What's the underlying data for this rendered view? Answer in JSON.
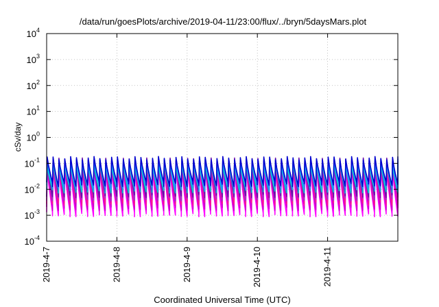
{
  "chart_data": {
    "type": "line",
    "title": "/data/run/goesPlots/archive/2019-04-11/23:00/flux/../bryn/5daysMars.plot",
    "xlabel": "Coordinated Universal Time (UTC)",
    "ylabel": "cSv/day",
    "yscale": "log",
    "ylim": [
      0.0001,
      10000
    ],
    "xlim": [
      "2019-04-07",
      "2019-04-12"
    ],
    "grid": true,
    "y_ticks": [
      {
        "value": 0.0001,
        "base": "10",
        "exp": "-4"
      },
      {
        "value": 0.001,
        "base": "10",
        "exp": "-3"
      },
      {
        "value": 0.01,
        "base": "10",
        "exp": "-2"
      },
      {
        "value": 0.1,
        "base": "10",
        "exp": "-1"
      },
      {
        "value": 1,
        "base": "10",
        "exp": "0"
      },
      {
        "value": 10,
        "base": "10",
        "exp": "1"
      },
      {
        "value": 100,
        "base": "10",
        "exp": "2"
      },
      {
        "value": 1000,
        "base": "10",
        "exp": "3"
      },
      {
        "value": 10000,
        "base": "10",
        "exp": "4"
      }
    ],
    "x_ticks": [
      {
        "value": 0,
        "label": "2019-4-7"
      },
      {
        "value": 1,
        "label": "2019-4-8"
      },
      {
        "value": 2,
        "label": "2019-4-9"
      },
      {
        "value": 3,
        "label": "2019-4-10"
      },
      {
        "value": 4,
        "label": "2019-4-11"
      }
    ],
    "pattern": {
      "cycles_per_day": 12,
      "days": 5,
      "peak_day_offset": 0.008,
      "peak_to_trough_days": 0.06
    },
    "series": [
      {
        "color": "#ff00ff",
        "peak": 0.07,
        "trough": 0.0011
      },
      {
        "color": "#cc00cc",
        "peak": 0.09,
        "trough": 0.0019
      },
      {
        "color": "#ff1493",
        "peak": 0.11,
        "trough": 0.003
      },
      {
        "color": "#9932cc",
        "peak": 0.12,
        "trough": 0.0045
      },
      {
        "color": "#6a0dad",
        "peak": 0.14,
        "trough": 0.006
      },
      {
        "color": "#00ced1",
        "peak": 0.1,
        "trough": 0.009
      },
      {
        "color": "#1e90ff",
        "peak": 0.13,
        "trough": 0.012
      },
      {
        "color": "#0000cd",
        "peak": 0.16,
        "trough": 0.016
      }
    ]
  }
}
